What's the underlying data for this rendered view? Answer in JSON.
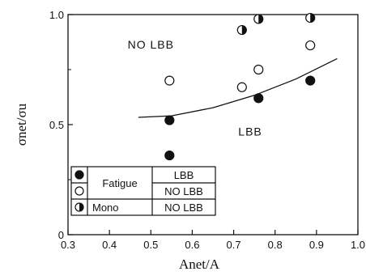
{
  "chart_data": {
    "type": "scatter",
    "xlabel": "Anet/A",
    "ylabel": "σnet/σu",
    "xlim": [
      0.3,
      1.0
    ],
    "ylim": [
      0,
      1.0
    ],
    "x_ticks": [
      "0.3",
      "0.4",
      "0.5",
      "0.6",
      "0.7",
      "0.8",
      "0.9",
      "1.0"
    ],
    "y_ticks": [
      "0",
      "0.5",
      "1.0"
    ],
    "series": [
      {
        "name": "Fatigue LBB",
        "marker": "filled-circle",
        "x": [
          0.545,
          0.545,
          0.76,
          0.885
        ],
        "y": [
          0.52,
          0.36,
          0.62,
          0.7
        ]
      },
      {
        "name": "Fatigue NO LBB",
        "marker": "open-circle",
        "x": [
          0.545,
          0.72,
          0.76,
          0.885
        ],
        "y": [
          0.7,
          0.67,
          0.75,
          0.86
        ]
      },
      {
        "name": "Mono NO LBB",
        "marker": "half-filled-circle",
        "x": [
          0.72,
          0.76,
          0.885
        ],
        "y": [
          0.93,
          0.98,
          0.985
        ]
      }
    ],
    "boundary_curve": {
      "x": [
        0.47,
        0.55,
        0.65,
        0.75,
        0.85,
        0.95
      ],
      "y": [
        0.533,
        0.54,
        0.577,
        0.633,
        0.707,
        0.8
      ]
    },
    "annotations": [
      {
        "text": "NO LBB",
        "x": 0.5,
        "y": 0.845
      },
      {
        "text": "LBB",
        "x": 0.74,
        "y": 0.45
      }
    ],
    "legend": {
      "placement": "bottom-left",
      "rows": [
        {
          "marker": "filled-circle",
          "group": "Fatigue",
          "result": "LBB"
        },
        {
          "marker": "open-circle",
          "group": "Fatigue",
          "result": "NO LBB"
        },
        {
          "marker": "half-filled-circle",
          "group": "Mono",
          "result": "NO LBB"
        }
      ]
    },
    "grid": false
  }
}
